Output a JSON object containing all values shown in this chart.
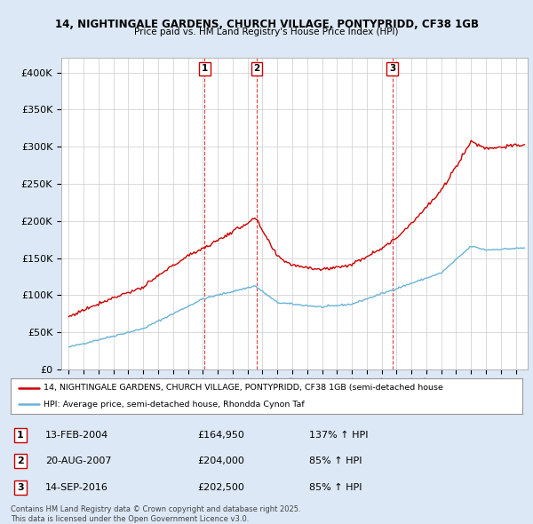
{
  "title_line1": "14, NIGHTINGALE GARDENS, CHURCH VILLAGE, PONTYPRIDD, CF38 1GB",
  "title_line2": "Price paid vs. HM Land Registry's House Price Index (HPI)",
  "legend_red": "14, NIGHTINGALE GARDENS, CHURCH VILLAGE, PONTYPRIDD, CF38 1GB (semi-detached house",
  "legend_blue": "HPI: Average price, semi-detached house, Rhondda Cynon Taf",
  "footer": "Contains HM Land Registry data © Crown copyright and database right 2025.\nThis data is licensed under the Open Government Licence v3.0.",
  "transactions": [
    {
      "label": "1",
      "date": "13-FEB-2004",
      "price": 164950,
      "hpi_pct": "137% ↑ HPI",
      "year": 2004.12
    },
    {
      "label": "2",
      "date": "20-AUG-2007",
      "price": 204000,
      "hpi_pct": "85% ↑ HPI",
      "year": 2007.63
    },
    {
      "label": "3",
      "date": "14-SEP-2016",
      "price": 202500,
      "hpi_pct": "85% ↑ HPI",
      "year": 2016.71
    }
  ],
  "hpi_color": "#6ab4d8",
  "price_color": "#cc0000",
  "background_color": "#dce8f5",
  "plot_bg": "#ffffff",
  "ylim": [
    0,
    420000
  ],
  "yticks": [
    0,
    50000,
    100000,
    150000,
    200000,
    250000,
    300000,
    350000,
    400000
  ],
  "ytick_labels": [
    "£0",
    "£50K",
    "£100K",
    "£150K",
    "£200K",
    "£250K",
    "£300K",
    "£350K",
    "£400K"
  ],
  "xlim_start": 1994.5,
  "xlim_end": 2025.8,
  "xtick_years": [
    1995,
    1996,
    1997,
    1998,
    1999,
    2000,
    2001,
    2002,
    2003,
    2004,
    2005,
    2006,
    2007,
    2008,
    2009,
    2010,
    2011,
    2012,
    2013,
    2014,
    2015,
    2016,
    2017,
    2018,
    2019,
    2020,
    2021,
    2022,
    2023,
    2024,
    2025
  ]
}
